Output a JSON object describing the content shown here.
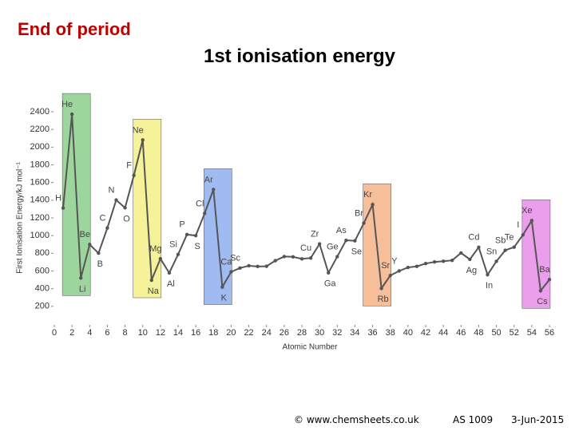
{
  "header": {
    "text": "End of period"
  },
  "chart_data": {
    "type": "line",
    "title": "1st ionisation energy",
    "x_label": "Atomic Number",
    "y_label": "First Ionisation Energy/kJ mol⁻¹",
    "x": [
      1,
      2,
      3,
      4,
      5,
      6,
      7,
      8,
      9,
      10,
      11,
      12,
      13,
      14,
      15,
      16,
      17,
      18,
      19,
      20,
      21,
      22,
      23,
      24,
      25,
      26,
      27,
      28,
      29,
      30,
      31,
      32,
      33,
      34,
      35,
      36,
      37,
      38,
      39,
      40,
      41,
      42,
      43,
      44,
      45,
      46,
      47,
      48,
      49,
      50,
      51,
      52,
      53,
      54,
      55,
      56
    ],
    "values": [
      1312,
      2372,
      520,
      900,
      801,
      1086,
      1402,
      1314,
      1681,
      2081,
      496,
      738,
      578,
      787,
      1012,
      1000,
      1251,
      1521,
      419,
      590,
      633,
      659,
      651,
      653,
      717,
      763,
      760,
      737,
      746,
      906,
      579,
      762,
      947,
      941,
      1140,
      1351,
      403,
      549,
      600,
      640,
      652,
      684,
      702,
      710,
      720,
      804,
      731,
      868,
      558,
      709,
      834,
      869,
      1008,
      1170,
      376,
      503
    ],
    "point_labels": [
      "H",
      "He",
      "Li",
      "Be",
      "B",
      "C",
      "N",
      "O",
      "F",
      "Ne",
      "Na",
      "Mg",
      "Al",
      "Si",
      "P",
      "S",
      "Cl",
      "Ar",
      "K",
      "Ca",
      "Sc",
      null,
      null,
      null,
      null,
      null,
      null,
      null,
      "Cu",
      "Zr",
      "Ga",
      "Ge",
      "As",
      "Se",
      "Br",
      "Kr",
      "Rb",
      "Sr",
      "Y",
      null,
      null,
      null,
      null,
      null,
      null,
      null,
      "Ag",
      "Cd",
      "In",
      "Sn",
      "Sb",
      "Te",
      "I",
      "Xe",
      "Cs",
      "Ba"
    ],
    "color": "#555555",
    "bands": [
      {
        "x": [
          2,
          3
        ],
        "color": "#7cc87c"
      },
      {
        "x": [
          10,
          11
        ],
        "color": "#f2ee78"
      },
      {
        "x": [
          18,
          19
        ],
        "color": "#7fa4ee"
      },
      {
        "x": [
          36,
          37
        ],
        "color": "#f4a878"
      },
      {
        "x": [
          54,
          55
        ],
        "color": "#e47ee4"
      }
    ],
    "xlim": [
      0,
      56
    ],
    "xticks": [
      0,
      2,
      4,
      6,
      8,
      10,
      12,
      14,
      16,
      18,
      20,
      22,
      24,
      26,
      28,
      30,
      32,
      34,
      36,
      38,
      40,
      42,
      44,
      46,
      48,
      50,
      52,
      54,
      56
    ],
    "ylim": [
      0,
      2400
    ],
    "yticks": [
      200,
      400,
      600,
      800,
      1000,
      1200,
      1400,
      1600,
      1800,
      2000,
      2200,
      2400
    ]
  },
  "footer": {
    "source": "© www.chemsheets.co.uk",
    "code": "AS 1009",
    "date": "3-Jun-2015"
  }
}
